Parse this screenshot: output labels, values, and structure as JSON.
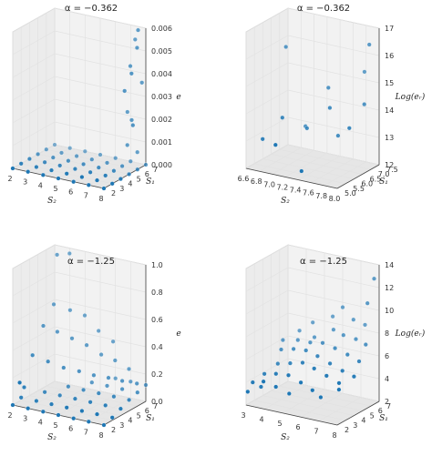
{
  "chart_data": [
    {
      "type": "scatter",
      "subplot": "top-left",
      "title": "α = −0.362",
      "xlabel": "S₂",
      "ylabel": "S₁",
      "zlabel": "e",
      "xticks": [
        "2",
        "3",
        "4",
        "5",
        "6",
        "7",
        "8"
      ],
      "yticks": [
        "2",
        "3",
        "4",
        "5",
        "6",
        "7"
      ],
      "zticks": [
        "0.000",
        "0.001",
        "0.002",
        "0.003",
        "0.004",
        "0.005",
        "0.006"
      ],
      "xlim": [
        2,
        8
      ],
      "ylim": [
        2,
        7
      ],
      "zlim": [
        0,
        0.006
      ],
      "grid": true,
      "points": [
        [
          7.6,
          6.8,
          0.0059
        ],
        [
          7.3,
          7.0,
          0.0054
        ],
        [
          7.7,
          6.5,
          0.0052
        ],
        [
          7.2,
          6.6,
          0.0043
        ],
        [
          7.5,
          6.2,
          0.0041
        ],
        [
          7.8,
          6.9,
          0.0036
        ],
        [
          7.1,
          6.1,
          0.0033
        ],
        [
          6.9,
          6.8,
          0.0022
        ],
        [
          7.4,
          6.4,
          0.002
        ],
        [
          7.7,
          6.0,
          0.0019
        ],
        [
          7.0,
          6.6,
          0.0008
        ],
        [
          7.5,
          6.9,
          0.0005
        ],
        [
          2,
          2,
          0
        ],
        [
          3,
          2,
          0
        ],
        [
          4,
          2,
          0
        ],
        [
          5,
          2,
          0
        ],
        [
          6,
          2,
          0
        ],
        [
          7,
          2,
          0
        ],
        [
          8,
          2,
          0
        ],
        [
          2,
          3,
          0
        ],
        [
          3,
          3,
          0
        ],
        [
          4,
          3,
          0
        ],
        [
          5,
          3,
          0
        ],
        [
          6,
          3,
          0
        ],
        [
          7,
          3,
          0
        ],
        [
          8,
          3,
          0
        ],
        [
          2,
          4,
          0
        ],
        [
          3,
          4,
          0
        ],
        [
          4,
          4,
          0
        ],
        [
          5,
          4,
          0
        ],
        [
          6,
          4,
          0
        ],
        [
          7,
          4,
          0
        ],
        [
          8,
          4,
          0
        ],
        [
          2,
          5,
          0
        ],
        [
          3,
          5,
          0
        ],
        [
          4,
          5,
          0
        ],
        [
          5,
          5,
          0
        ],
        [
          6,
          5,
          0
        ],
        [
          7,
          5,
          0
        ],
        [
          8,
          5,
          0
        ],
        [
          2,
          6,
          0
        ],
        [
          3,
          6,
          0
        ],
        [
          4,
          6,
          0
        ],
        [
          5,
          6,
          0
        ],
        [
          6,
          6,
          0
        ],
        [
          7,
          6,
          0
        ],
        [
          8,
          6,
          0
        ],
        [
          2,
          7,
          0
        ],
        [
          3,
          7,
          0
        ],
        [
          4,
          7,
          0
        ],
        [
          5,
          7,
          0
        ],
        [
          6,
          7,
          0
        ],
        [
          7,
          7,
          0
        ],
        [
          8,
          7,
          0
        ]
      ]
    },
    {
      "type": "scatter",
      "subplot": "top-right",
      "title": "α = −0.362",
      "xlabel": "S₂",
      "ylabel": "S₁",
      "zlabel": "Log(eᵣ)",
      "xticks": [
        "6.6",
        "6.8",
        "7.0",
        "7.2",
        "7.4",
        "7.6",
        "7.8",
        "8.0"
      ],
      "yticks": [
        "5.0",
        "5.5",
        "6.0",
        "6.5",
        "7.0",
        "7.5"
      ],
      "zticks": [
        "12",
        "13",
        "14",
        "15",
        "16",
        "17"
      ],
      "xlim": [
        6.6,
        8.0
      ],
      "ylim": [
        5.0,
        7.5
      ],
      "zlim": [
        11,
        17
      ],
      "grid": true,
      "points": [
        [
          7.9,
          7.3,
          16.3
        ],
        [
          7.8,
          7.4,
          15.0
        ],
        [
          6.8,
          6.6,
          15.8
        ],
        [
          7.4,
          6.8,
          14.3
        ],
        [
          7.9,
          7.0,
          13.8
        ],
        [
          7.5,
          6.5,
          13.6
        ],
        [
          6.9,
          6.0,
          13.0
        ],
        [
          7.2,
          6.3,
          12.6
        ],
        [
          7.6,
          6.6,
          12.4
        ],
        [
          7.0,
          5.2,
          12.2
        ],
        [
          6.7,
          5.6,
          12.1
        ],
        [
          7.4,
          5.2,
          11.3
        ],
        [
          7.8,
          6.5,
          12.9
        ],
        [
          7.1,
          6.6,
          12.5
        ]
      ]
    },
    {
      "type": "scatter",
      "subplot": "bottom-left",
      "title": "α = −1.25",
      "xlabel": "S₂",
      "ylabel": "S₁",
      "zlabel": "e",
      "xticks": [
        "2",
        "3",
        "4",
        "5",
        "6",
        "7",
        "8"
      ],
      "yticks": [
        "2",
        "3",
        "4",
        "5",
        "6",
        "7"
      ],
      "zticks": [
        "0.0",
        "0.2",
        "0.4",
        "0.6",
        "0.8",
        "1.0"
      ],
      "xlim": [
        2,
        8
      ],
      "ylim": [
        2,
        7
      ],
      "zlim": [
        0,
        1.0
      ],
      "grid": true,
      "points": [
        [
          2.6,
          6.2,
          0.97
        ],
        [
          3.2,
          6.6,
          0.98
        ],
        [
          2.6,
          5.8,
          0.62
        ],
        [
          3.4,
          6.3,
          0.58
        ],
        [
          4.2,
          6.6,
          0.55
        ],
        [
          5.0,
          6.8,
          0.45
        ],
        [
          5.9,
          6.9,
          0.39
        ],
        [
          2.3,
          5.1,
          0.48
        ],
        [
          3.0,
          5.5,
          0.44
        ],
        [
          3.8,
          5.8,
          0.4
        ],
        [
          4.6,
          6.1,
          0.36
        ],
        [
          5.4,
          6.4,
          0.3
        ],
        [
          6.2,
          6.6,
          0.27
        ],
        [
          7.0,
          6.8,
          0.22
        ],
        [
          2.2,
          4.0,
          0.3
        ],
        [
          3.0,
          4.4,
          0.26
        ],
        [
          3.8,
          4.8,
          0.22
        ],
        [
          4.6,
          5.2,
          0.2
        ],
        [
          5.4,
          5.5,
          0.18
        ],
        [
          6.2,
          5.8,
          0.17
        ],
        [
          7.0,
          6.0,
          0.16
        ],
        [
          7.8,
          6.3,
          0.15
        ],
        [
          2,
          2,
          0
        ],
        [
          3,
          2,
          0
        ],
        [
          4,
          2,
          0
        ],
        [
          5,
          2,
          0
        ],
        [
          6,
          2,
          0
        ],
        [
          7,
          2,
          0
        ],
        [
          8,
          2,
          0
        ],
        [
          2,
          3,
          0.02
        ],
        [
          3,
          3,
          0.02
        ],
        [
          4,
          3,
          0.02
        ],
        [
          5,
          3,
          0.02
        ],
        [
          6,
          3,
          0.02
        ],
        [
          7,
          3,
          0.02
        ],
        [
          8,
          3,
          0.02
        ],
        [
          3,
          4,
          0.05
        ],
        [
          4,
          4,
          0.05
        ],
        [
          5,
          4,
          0.05
        ],
        [
          6,
          4,
          0.05
        ],
        [
          7,
          4,
          0.05
        ],
        [
          8,
          4,
          0.05
        ],
        [
          4,
          5,
          0.08
        ],
        [
          5,
          5,
          0.08
        ],
        [
          6,
          5,
          0.08
        ],
        [
          7,
          5,
          0.08
        ],
        [
          8,
          5,
          0.08
        ],
        [
          5,
          6,
          0.1
        ],
        [
          6,
          6,
          0.1
        ],
        [
          7,
          6,
          0.1
        ],
        [
          8,
          6,
          0.1
        ],
        [
          6,
          7,
          0.12
        ],
        [
          7,
          7,
          0.12
        ],
        [
          8,
          7,
          0.12
        ],
        [
          2.4,
          2.1,
          0.17
        ],
        [
          2.2,
          3.0,
          0.1
        ]
      ]
    },
    {
      "type": "scatter",
      "subplot": "bottom-right",
      "title": "α = −1.25",
      "xlabel": "S₂",
      "ylabel": "S₁",
      "zlabel": "Log(eᵣ)",
      "xticks": [
        "3",
        "4",
        "5",
        "6",
        "7",
        "8"
      ],
      "yticks": [
        "2",
        "3",
        "4",
        "5",
        "6",
        "7"
      ],
      "zticks": [
        "2",
        "4",
        "6",
        "8",
        "10",
        "12",
        "14"
      ],
      "xlim": [
        2.5,
        8
      ],
      "ylim": [
        2,
        7
      ],
      "zlim": [
        1,
        15
      ],
      "grid": true,
      "points": [
        [
          7.8,
          6.8,
          13.6
        ],
        [
          7.6,
          6.4,
          11.2
        ],
        [
          6.0,
          6.6,
          10.1
        ],
        [
          5.3,
          6.8,
          8.8
        ],
        [
          6.6,
          6.7,
          9.0
        ],
        [
          7.2,
          6.9,
          8.6
        ],
        [
          4.3,
          6.4,
          8.0
        ],
        [
          5.6,
          6.3,
          7.8
        ],
        [
          6.3,
          6.1,
          7.6
        ],
        [
          7.0,
          6.2,
          7.4
        ],
        [
          7.7,
          6.0,
          7.2
        ],
        [
          3.6,
          6.2,
          7.0
        ],
        [
          4.6,
          6.0,
          6.8
        ],
        [
          3.0,
          5.4,
          6.2
        ],
        [
          3.8,
          5.6,
          6.4
        ],
        [
          4.6,
          5.5,
          6.5
        ],
        [
          5.4,
          5.4,
          6.8
        ],
        [
          6.2,
          5.3,
          6.6
        ],
        [
          7.0,
          5.2,
          6.3
        ],
        [
          7.8,
          5.0,
          6.0
        ],
        [
          3.2,
          4.8,
          5.6
        ],
        [
          4.0,
          4.7,
          6.0
        ],
        [
          4.8,
          4.6,
          6.2
        ],
        [
          5.6,
          4.4,
          6.0
        ],
        [
          6.4,
          4.3,
          5.6
        ],
        [
          7.2,
          4.2,
          5.2
        ],
        [
          8.0,
          4.0,
          5.0
        ],
        [
          3.4,
          4.0,
          4.6
        ],
        [
          4.2,
          3.9,
          5.0
        ],
        [
          5.0,
          3.8,
          5.4
        ],
        [
          5.8,
          3.6,
          5.2
        ],
        [
          6.6,
          3.5,
          4.8
        ],
        [
          7.4,
          3.4,
          4.4
        ],
        [
          3.0,
          3.2,
          3.8
        ],
        [
          3.8,
          3.0,
          4.2
        ],
        [
          4.6,
          2.9,
          4.4
        ],
        [
          5.4,
          2.8,
          4.0
        ],
        [
          6.2,
          2.6,
          3.6
        ],
        [
          2.7,
          2.4,
          3.2
        ],
        [
          3.4,
          2.3,
          3.6
        ],
        [
          4.2,
          2.2,
          3.4
        ],
        [
          2.6,
          2.0,
          2.4
        ],
        [
          3.1,
          2.6,
          2.8
        ],
        [
          5.0,
          2.2,
          3.0
        ],
        [
          6.8,
          2.4,
          3.2
        ],
        [
          7.6,
          3.0,
          4.0
        ]
      ]
    }
  ]
}
